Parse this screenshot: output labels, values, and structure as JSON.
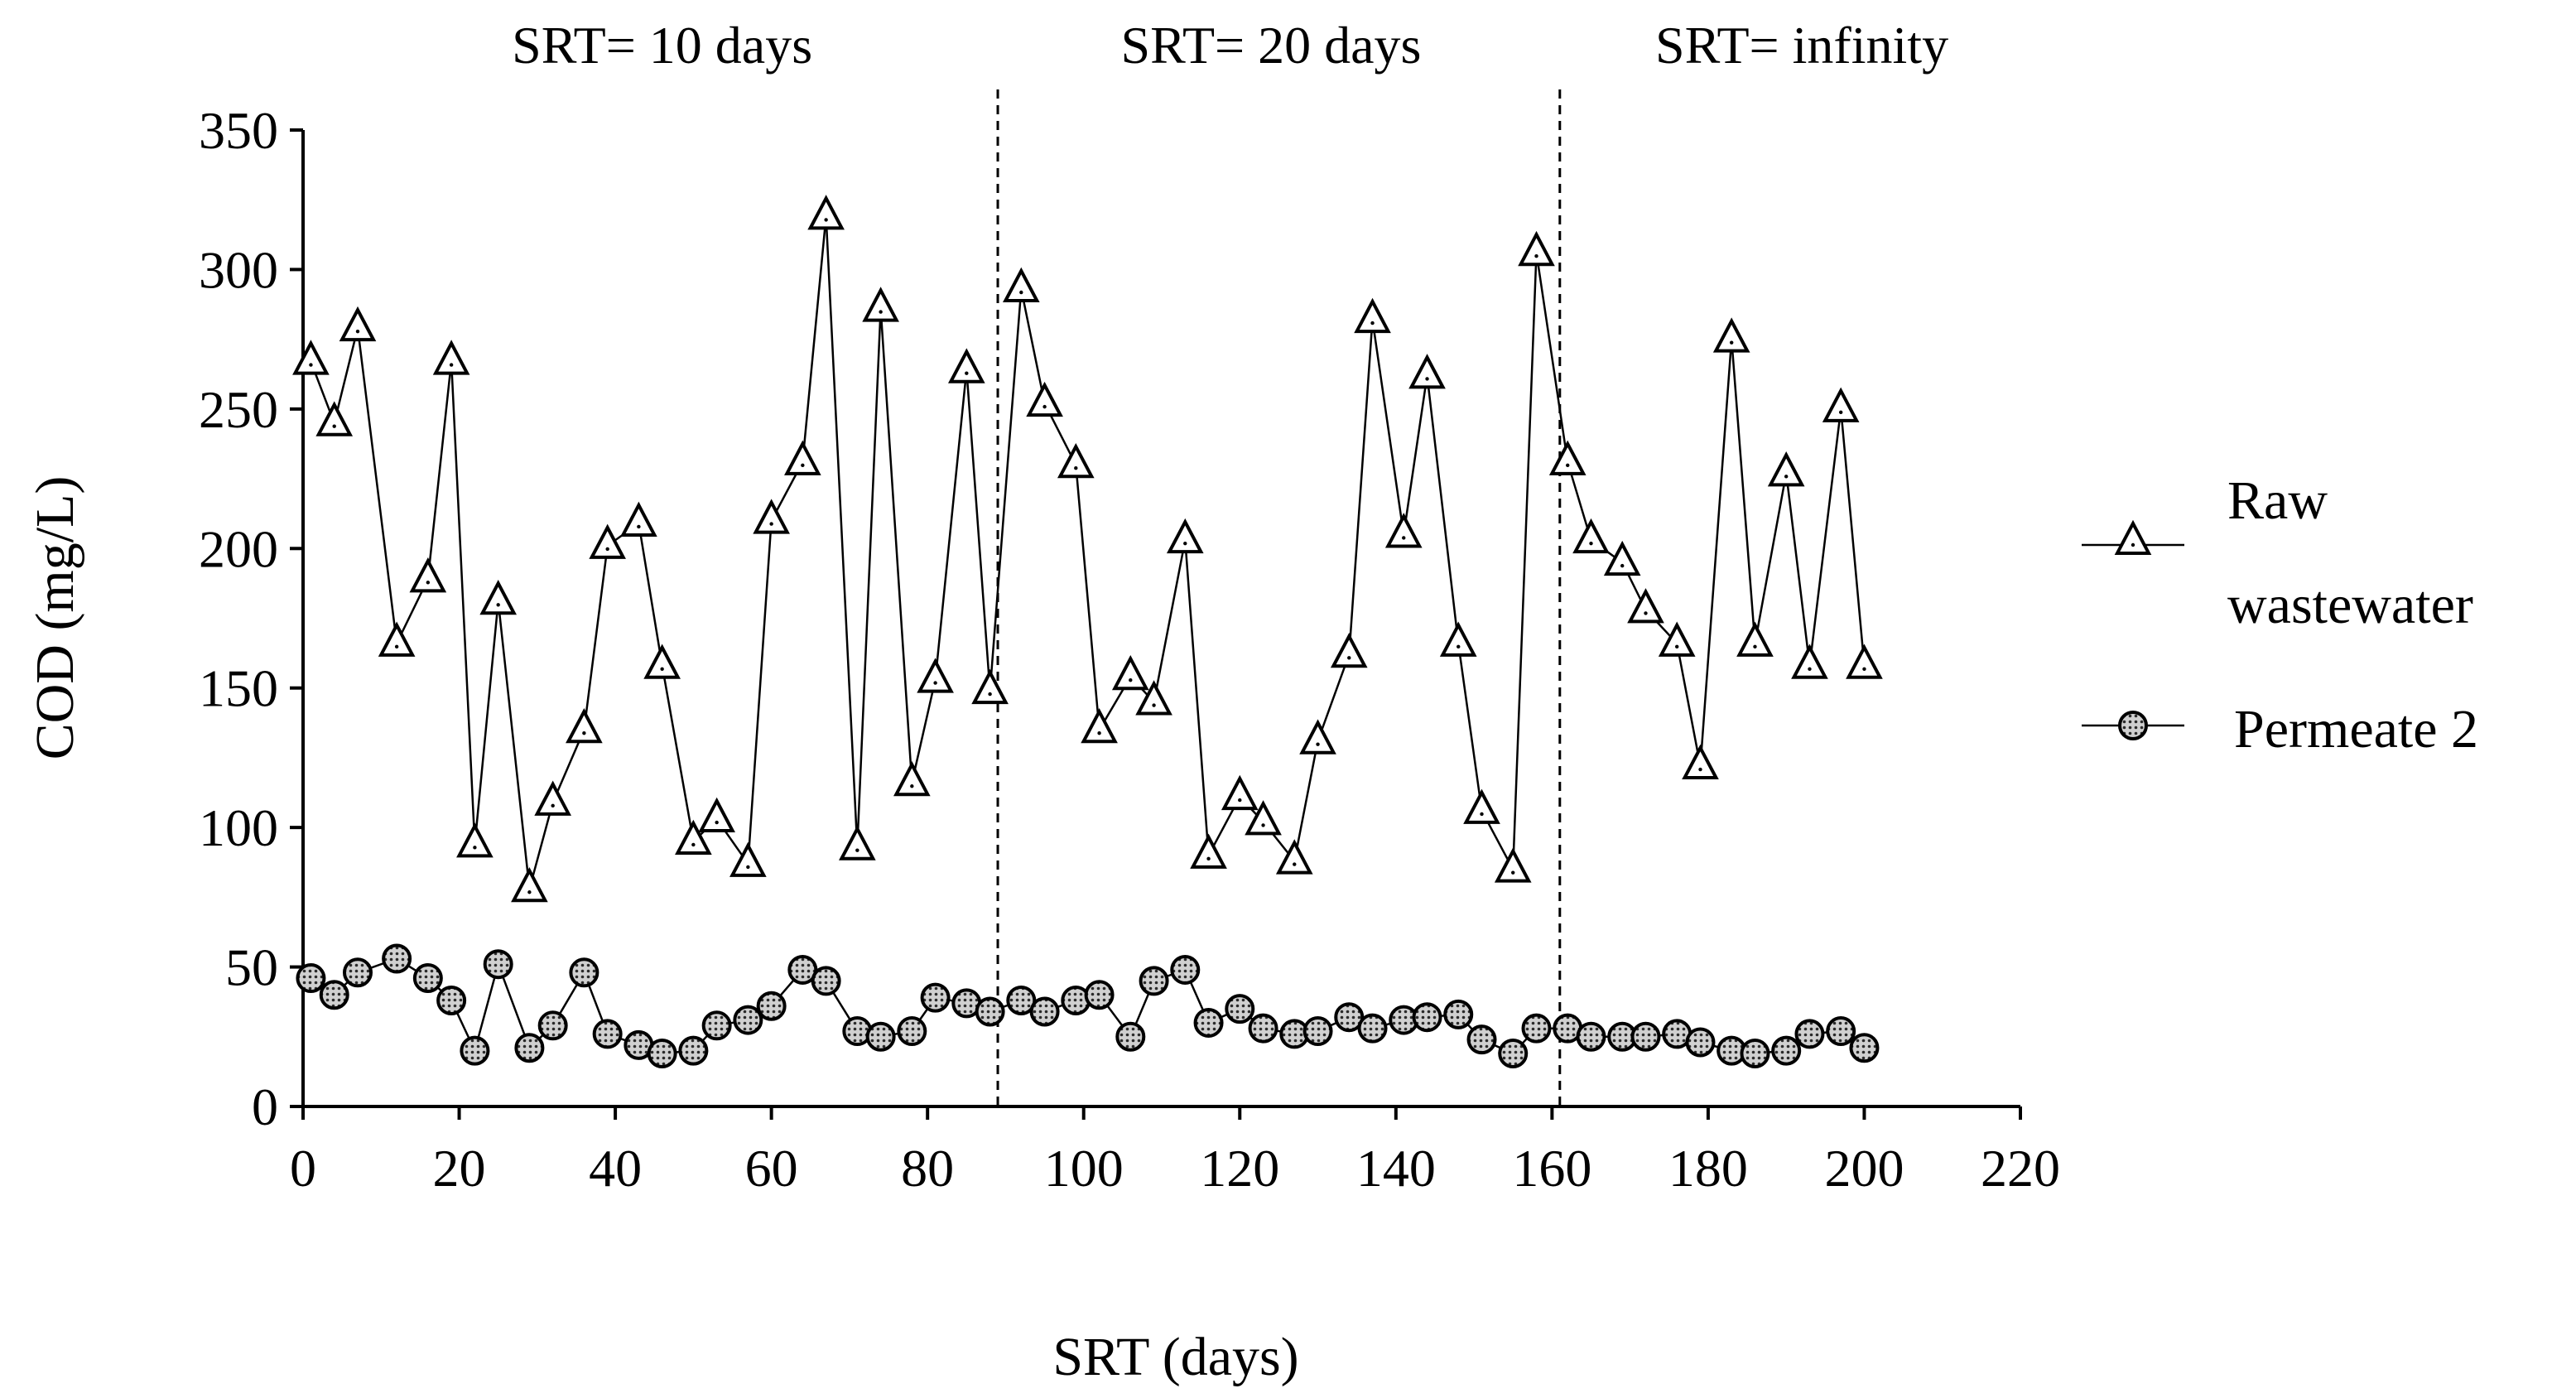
{
  "chart_data": {
    "type": "line",
    "title": "",
    "xlabel": "SRT (days)",
    "ylabel": "COD (mg/L)",
    "xlim": [
      0,
      220
    ],
    "ylim": [
      0,
      350
    ],
    "xticks": [
      0,
      20,
      40,
      60,
      80,
      100,
      120,
      140,
      160,
      180,
      200,
      220
    ],
    "yticks": [
      0,
      50,
      100,
      150,
      200,
      250,
      300,
      350
    ],
    "grid": false,
    "legend_position": "right",
    "phase_dividers": [
      89,
      161
    ],
    "phase_labels": [
      {
        "text": "SRT= 10 days",
        "center_x": 46
      },
      {
        "text": "SRT= 20 days",
        "center_x": 124
      },
      {
        "text": "SRT= infinity",
        "center_x": 192
      }
    ],
    "series": [
      {
        "name": "Raw wastewater",
        "legend_label_lines": [
          "Raw",
          "wastewater"
        ],
        "marker": "triangle",
        "color": "#000000",
        "points": [
          [
            1,
            267
          ],
          [
            4,
            245
          ],
          [
            7,
            279
          ],
          [
            12,
            166
          ],
          [
            16,
            189
          ],
          [
            19,
            267
          ],
          [
            22,
            94
          ],
          [
            25,
            181
          ],
          [
            29,
            78
          ],
          [
            32,
            109
          ],
          [
            36,
            135
          ],
          [
            39,
            201
          ],
          [
            43,
            209
          ],
          [
            46,
            158
          ],
          [
            50,
            95
          ],
          [
            53,
            103
          ],
          [
            57,
            87
          ],
          [
            60,
            210
          ],
          [
            64,
            231
          ],
          [
            67,
            319
          ],
          [
            71,
            93
          ],
          [
            74,
            286
          ],
          [
            78,
            116
          ],
          [
            81,
            153
          ],
          [
            85,
            264
          ],
          [
            88,
            149
          ],
          [
            92,
            293
          ],
          [
            95,
            252
          ],
          [
            99,
            230
          ],
          [
            102,
            135
          ],
          [
            106,
            154
          ],
          [
            109,
            145
          ],
          [
            113,
            203
          ],
          [
            116,
            90
          ],
          [
            120,
            111
          ],
          [
            123,
            102
          ],
          [
            127,
            88
          ],
          [
            130,
            131
          ],
          [
            134,
            162
          ],
          [
            137,
            282
          ],
          [
            141,
            205
          ],
          [
            144,
            262
          ],
          [
            148,
            166
          ],
          [
            151,
            106
          ],
          [
            155,
            85
          ],
          [
            158,
            306
          ],
          [
            162,
            231
          ],
          [
            165,
            203
          ],
          [
            169,
            195
          ],
          [
            172,
            178
          ],
          [
            176,
            166
          ],
          [
            179,
            122
          ],
          [
            183,
            275
          ],
          [
            186,
            166
          ],
          [
            190,
            227
          ],
          [
            193,
            158
          ],
          [
            197,
            250
          ],
          [
            200,
            158
          ]
        ]
      },
      {
        "name": "Permeate 2",
        "legend_label_lines": [
          "Permeate 2"
        ],
        "marker": "circle",
        "color": "#000000",
        "points": [
          [
            1,
            46
          ],
          [
            4,
            40
          ],
          [
            7,
            48
          ],
          [
            12,
            53
          ],
          [
            16,
            46
          ],
          [
            19,
            38
          ],
          [
            22,
            20
          ],
          [
            25,
            51
          ],
          [
            29,
            21
          ],
          [
            32,
            29
          ],
          [
            36,
            48
          ],
          [
            39,
            26
          ],
          [
            43,
            22
          ],
          [
            46,
            19
          ],
          [
            50,
            20
          ],
          [
            53,
            29
          ],
          [
            57,
            31
          ],
          [
            60,
            36
          ],
          [
            64,
            49
          ],
          [
            67,
            45
          ],
          [
            71,
            27
          ],
          [
            74,
            25
          ],
          [
            78,
            27
          ],
          [
            81,
            39
          ],
          [
            85,
            37
          ],
          [
            88,
            34
          ],
          [
            92,
            38
          ],
          [
            95,
            34
          ],
          [
            99,
            38
          ],
          [
            102,
            40
          ],
          [
            106,
            25
          ],
          [
            109,
            45
          ],
          [
            113,
            49
          ],
          [
            116,
            30
          ],
          [
            120,
            35
          ],
          [
            123,
            28
          ],
          [
            127,
            26
          ],
          [
            130,
            27
          ],
          [
            134,
            32
          ],
          [
            137,
            28
          ],
          [
            141,
            31
          ],
          [
            144,
            32
          ],
          [
            148,
            33
          ],
          [
            151,
            24
          ],
          [
            155,
            19
          ],
          [
            158,
            28
          ],
          [
            162,
            28
          ],
          [
            165,
            25
          ],
          [
            169,
            25
          ],
          [
            172,
            25
          ],
          [
            176,
            26
          ],
          [
            179,
            23
          ],
          [
            183,
            20
          ],
          [
            186,
            19
          ],
          [
            190,
            20
          ],
          [
            193,
            26
          ],
          [
            197,
            27
          ],
          [
            200,
            21
          ]
        ]
      }
    ]
  }
}
